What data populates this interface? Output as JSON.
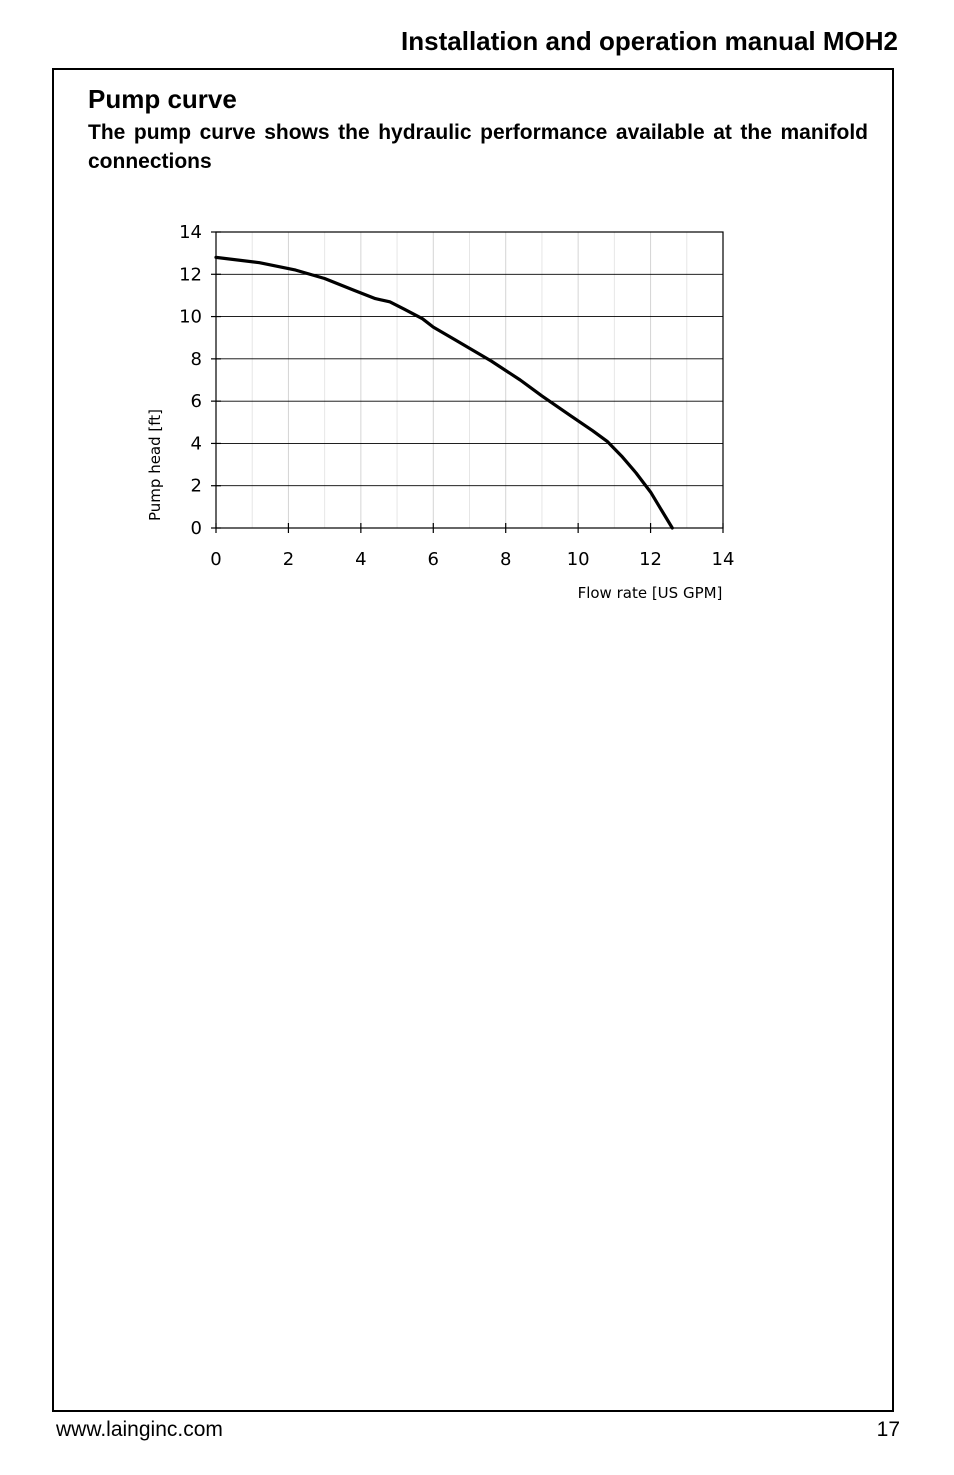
{
  "header": {
    "title": "Installation and operation manual MOH2"
  },
  "section": {
    "title": "Pump curve",
    "description": "The pump curve shows the hydraulic performance available at the manifold connections"
  },
  "chart_data": {
    "type": "line",
    "title": "",
    "xlabel": "Flow rate [US GPM]",
    "ylabel": "Pump head [ft]",
    "xlim": [
      0,
      14
    ],
    "ylim": [
      0,
      14
    ],
    "x_ticks": [
      "0",
      "2",
      "4",
      "6",
      "8",
      "10",
      "12",
      "14"
    ],
    "y_ticks": [
      "0",
      "2",
      "4",
      "6",
      "8",
      "10",
      "12",
      "14"
    ],
    "grid": "on",
    "legend": "none",
    "series": [
      {
        "line_color": "#000000",
        "x": [
          0,
          1.2,
          2.2,
          3.0,
          3.8,
          4.4,
          4.8,
          5.2,
          5.7,
          6.0,
          6.6,
          7.2,
          7.6,
          8.4,
          9.0,
          9.8,
          10.4,
          10.8,
          11.2,
          11.6,
          12.0,
          12.3,
          12.6
        ],
        "y": [
          12.8,
          12.55,
          12.2,
          11.8,
          11.25,
          10.85,
          10.7,
          10.35,
          9.9,
          9.5,
          8.9,
          8.3,
          7.9,
          7.0,
          6.25,
          5.3,
          4.6,
          4.1,
          3.4,
          2.6,
          1.7,
          0.85,
          0
        ]
      }
    ]
  },
  "footer": {
    "website": "www.lainginc.com",
    "page_number": "17"
  }
}
